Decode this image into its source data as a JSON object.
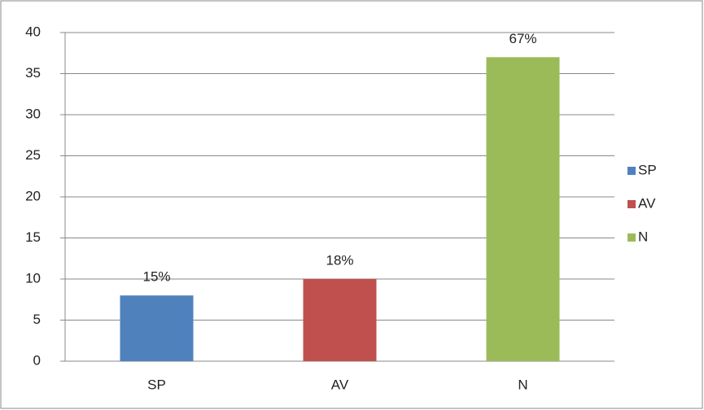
{
  "chart_data": {
    "type": "bar",
    "categories": [
      "SP",
      "AV",
      "N"
    ],
    "values": [
      8,
      10,
      37
    ],
    "annotations": [
      "15%",
      "18%",
      "67%"
    ],
    "colors": [
      "#4f81bd",
      "#c0504d",
      "#9bbb59"
    ],
    "ylim": [
      0,
      40
    ],
    "yticks": [
      0,
      5,
      10,
      15,
      20,
      25,
      30,
      35,
      40
    ],
    "grid": true,
    "legend": "right"
  }
}
